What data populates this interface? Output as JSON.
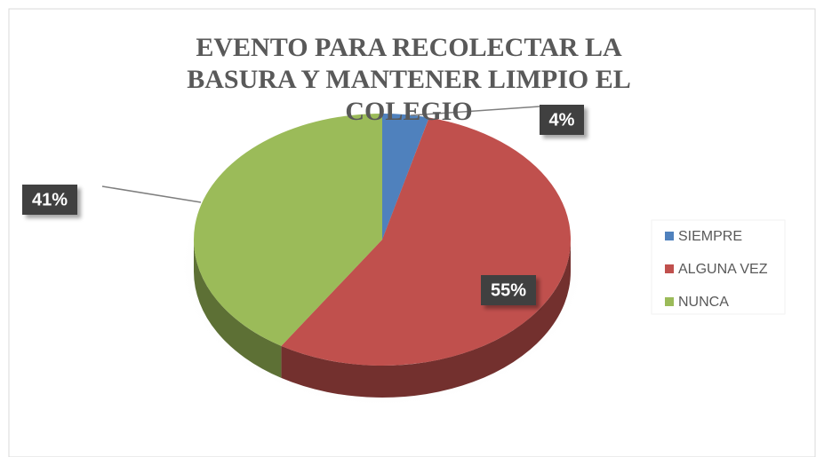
{
  "chart_data": {
    "type": "pie",
    "title": "EVENTO PARA RECOLECTAR LA BASURA Y MANTENER LIMPIO EL COLEGIO",
    "categories": [
      "SIEMPRE",
      "ALGUNA VEZ",
      "NUNCA"
    ],
    "values": [
      4,
      55,
      41
    ],
    "value_labels": [
      "4%",
      "55%",
      "41%"
    ],
    "colors": [
      "#4f81bd",
      "#c0504d",
      "#9bbb59"
    ],
    "legend": "right"
  }
}
